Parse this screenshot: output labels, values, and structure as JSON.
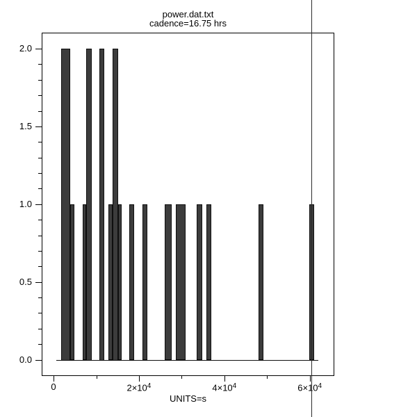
{
  "window": {
    "background": "#ffffff"
  },
  "chart": {
    "title": "power.dat.txt",
    "subtitle": "cadence=16.75 hrs",
    "xlabel": "UNITS=s"
  },
  "chart_data": {
    "type": "bar",
    "title": "power.dat.txt",
    "subtitle": "cadence=16.75 hrs",
    "xlabel": "UNITS=s",
    "ylabel": "",
    "xlim": [
      -2770,
      65750
    ],
    "ylim": [
      -0.105,
      2.103
    ],
    "grid": false,
    "x_major_ticks": [
      {
        "value": 0,
        "label": "0"
      },
      {
        "value": 20000,
        "label": "2×10^4"
      },
      {
        "value": 40000,
        "label": "4×10^4"
      },
      {
        "value": 60000,
        "label": "6×10^4"
      }
    ],
    "x_minor_tick_values": [
      10000,
      30000,
      50000
    ],
    "y_major_ticks": [
      {
        "value": 0.0,
        "label": "0.0"
      },
      {
        "value": 0.5,
        "label": "0.5"
      },
      {
        "value": 1.0,
        "label": "1.0"
      },
      {
        "value": 1.5,
        "label": "1.5"
      },
      {
        "value": 2.0,
        "label": "2.0"
      }
    ],
    "y_minor_step": 0.1,
    "baseline_y": 0,
    "baseline_x_range": [
      650,
      62000
    ],
    "cadence_line_x": 60300,
    "steps": [
      {
        "x0": 1790,
        "x1": 3910,
        "count": 2
      },
      {
        "x0": 3910,
        "x1": 4880,
        "count": 1
      },
      {
        "x0": 6840,
        "x1": 7700,
        "count": 1
      },
      {
        "x0": 7700,
        "x1": 8950,
        "count": 2
      },
      {
        "x0": 10690,
        "x1": 11830,
        "count": 2
      },
      {
        "x0": 12810,
        "x1": 13790,
        "count": 1
      },
      {
        "x0": 13790,
        "x1": 15140,
        "count": 2
      },
      {
        "x0": 15140,
        "x1": 16000,
        "count": 1
      },
      {
        "x0": 17690,
        "x1": 18930,
        "count": 1
      },
      {
        "x0": 20780,
        "x1": 21920,
        "count": 1
      },
      {
        "x0": 25990,
        "x1": 27710,
        "count": 1
      },
      {
        "x0": 28590,
        "x1": 30920,
        "count": 1
      },
      {
        "x0": 33570,
        "x1": 34780,
        "count": 1
      },
      {
        "x0": 35750,
        "x1": 36990,
        "count": 1
      },
      {
        "x0": 47960,
        "x1": 49150,
        "count": 1
      },
      {
        "x0": 59890,
        "x1": 61080,
        "count": 1
      }
    ],
    "colors": {
      "bar_fill": "#3c3c3c",
      "bar_edge": "#0e0e0e",
      "axis": "#000000",
      "cadence_line": "#2b2b2b",
      "text": "#000000"
    }
  }
}
